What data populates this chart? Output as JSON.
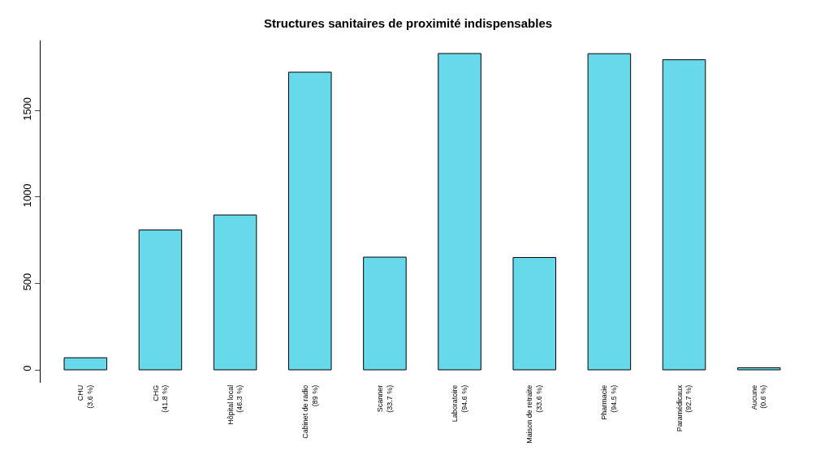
{
  "chart_data": {
    "type": "bar",
    "title": "Structures sanitaires de proximité indispensables",
    "categories": [
      "CHU\n(3.6 %)",
      "CHG\n(41.8 %)",
      "Hôpital local\n(46.3 %)",
      "Cabinet de radio\n(89 %)",
      "Scanner\n(33.7 %)",
      "Laboratoire\n(94.6 %)",
      "Maison de retraite\n(33.6 %)",
      "Pharmacie\n(94.5 %)",
      "Paramédicaux\n(92.7 %)",
      "Aucune\n(0.6 %)"
    ],
    "values": [
      70,
      809,
      896,
      1722,
      652,
      1830,
      650,
      1829,
      1794,
      12
    ],
    "color": "#68d9eb",
    "ylim": [
      -75,
      1905
    ],
    "yticks": [
      0,
      500,
      1000,
      1500
    ]
  }
}
